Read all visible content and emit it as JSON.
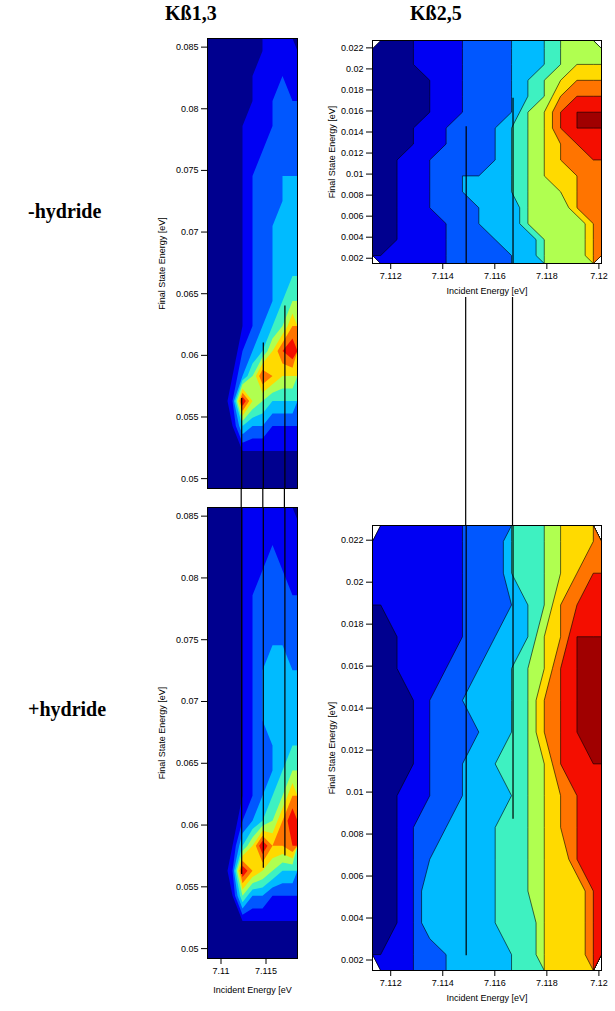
{
  "column_titles": [
    "Kß1,3",
    "Kß2,5"
  ],
  "row_titles": [
    "-hydride",
    "+hydride"
  ],
  "chart_data": [
    {
      "type": "contour",
      "ylabel": "Final State Energy [eV]",
      "tick_labels": "y",
      "xlim": [
        7.1085,
        7.1185
      ],
      "ylim": [
        0.0492,
        0.0857
      ],
      "yticks": [
        0.05,
        0.055,
        0.06,
        0.065,
        0.07,
        0.075,
        0.08,
        0.085
      ],
      "levels": [
        1,
        2,
        3,
        4,
        5,
        6,
        7,
        8,
        9,
        10
      ],
      "cells": [
        [
          1,
          1,
          1,
          1,
          1,
          2,
          2,
          2,
          2
        ],
        [
          1,
          1,
          1,
          1,
          2,
          2,
          2,
          3,
          2
        ],
        [
          1,
          1,
          1,
          1,
          2,
          2,
          3,
          3,
          3
        ],
        [
          1,
          1,
          1,
          2,
          2,
          2,
          3,
          3,
          3
        ],
        [
          1,
          1,
          1,
          2,
          2,
          3,
          3,
          3,
          3
        ],
        [
          1,
          1,
          1,
          2,
          3,
          3,
          3,
          4,
          4
        ],
        [
          1,
          1,
          1,
          2,
          3,
          3,
          3,
          4,
          4
        ],
        [
          1,
          1,
          1,
          2,
          3,
          3,
          4,
          4,
          4
        ],
        [
          1,
          1,
          1,
          2,
          3,
          3,
          4,
          4,
          4
        ],
        [
          1,
          1,
          1,
          2,
          3,
          3,
          4,
          4,
          5
        ],
        [
          1,
          1,
          1,
          2,
          3,
          3,
          4,
          5,
          6
        ],
        [
          1,
          1,
          1,
          2,
          3,
          4,
          5,
          6,
          8
        ],
        [
          1,
          1,
          1,
          3,
          4,
          5,
          7,
          9,
          10
        ],
        [
          1,
          1,
          2,
          4,
          6,
          9,
          8,
          7,
          7
        ],
        [
          1,
          1,
          3,
          10,
          7,
          6,
          5,
          5,
          5
        ],
        [
          1,
          1,
          2,
          5,
          4,
          4,
          3,
          3,
          3
        ],
        [
          1,
          1,
          1,
          2,
          2,
          2,
          2,
          2,
          2
        ],
        [
          1,
          1,
          1,
          1,
          1,
          1,
          1,
          1,
          1
        ]
      ],
      "lines": [
        {
          "x": 7.1123,
          "y1": 0.0492,
          "y2": 0.0565
        },
        {
          "x": 7.1147,
          "y1": 0.0492,
          "y2": 0.061
        },
        {
          "x": 7.1171,
          "y1": 0.0492,
          "y2": 0.064
        }
      ]
    },
    {
      "type": "contour",
      "xlabel": "Incident Energy [eV]",
      "ylabel": "Final State Energy [eV]",
      "xlim": [
        7.1113,
        7.1201
      ],
      "ylim": [
        0.0015,
        0.0227
      ],
      "xticks": [
        7.112,
        7.114,
        7.116,
        7.118,
        7.12
      ],
      "yticks": [
        0.002,
        0.004,
        0.006,
        0.008,
        0.01,
        0.012,
        0.014,
        0.016,
        0.018,
        0.02,
        0.022
      ],
      "levels": [
        1,
        2,
        3,
        4,
        5,
        6,
        7,
        8,
        9,
        10
      ],
      "cells": [
        [
          null,
          null,
          null,
          null,
          null,
          null,
          null,
          null,
          null,
          null,
          null,
          null,
          6,
          6
        ],
        [
          null,
          null,
          null,
          null,
          null,
          null,
          null,
          null,
          null,
          4,
          5,
          6,
          7,
          7
        ],
        [
          null,
          null,
          null,
          null,
          null,
          null,
          null,
          3,
          4,
          5,
          6,
          7,
          8,
          8
        ],
        [
          null,
          null,
          null,
          null,
          2,
          3,
          3,
          3,
          4,
          5,
          6,
          8,
          9,
          9
        ],
        [
          null,
          null,
          1,
          2,
          2,
          3,
          3,
          3,
          4,
          6,
          7,
          9,
          10,
          10
        ],
        [
          1,
          1,
          2,
          2,
          3,
          3,
          3,
          4,
          5,
          6,
          7,
          9,
          10,
          10
        ],
        [
          1,
          1,
          2,
          2,
          3,
          3,
          3,
          4,
          5,
          6,
          7,
          8,
          9,
          9
        ],
        [
          1,
          2,
          2,
          3,
          4,
          3,
          3,
          4,
          5,
          6,
          7,
          8,
          8,
          9
        ],
        [
          1,
          2,
          2,
          3,
          3,
          4,
          4,
          4,
          5,
          6,
          7,
          7,
          8,
          8
        ],
        [
          1,
          2,
          2,
          3,
          3,
          4,
          4,
          4,
          5,
          6,
          6,
          null,
          null,
          null
        ],
        [
          1,
          2,
          2,
          3,
          3,
          3,
          4,
          4,
          null,
          null,
          null,
          null,
          null,
          null
        ],
        [
          1,
          2,
          2,
          2,
          3,
          3,
          null,
          null,
          null,
          null,
          null,
          null,
          null,
          null
        ],
        [
          1,
          2,
          2,
          null,
          null,
          null,
          null,
          null,
          null,
          null,
          null,
          null,
          null,
          null
        ],
        [
          2,
          null,
          null,
          null,
          null,
          null,
          null,
          null,
          null,
          null,
          null,
          null,
          null,
          null
        ]
      ],
      "lines": [
        {
          "x": 7.1149,
          "y1": 0.0015,
          "y2": 0.0145
        },
        {
          "x": 7.1167,
          "y1": 0.0015,
          "y2": 0.0172
        }
      ]
    },
    {
      "type": "contour",
      "xlabel": "Incident Energy [eV",
      "ylabel": "Final State Energy [eV]",
      "xlim": [
        7.1085,
        7.1185
      ],
      "ylim": [
        0.0492,
        0.0857
      ],
      "xticks": [
        7.11,
        7.115
      ],
      "yticks": [
        0.05,
        0.055,
        0.06,
        0.065,
        0.07,
        0.075,
        0.08,
        0.085
      ],
      "levels": [
        1,
        2,
        3,
        4,
        5,
        6,
        7,
        8,
        9,
        10
      ],
      "cells": [
        [
          1,
          1,
          1,
          2,
          2,
          2,
          2,
          2,
          2
        ],
        [
          1,
          1,
          1,
          2,
          2,
          2,
          3,
          2,
          2
        ],
        [
          1,
          1,
          1,
          2,
          2,
          3,
          3,
          3,
          2
        ],
        [
          1,
          1,
          1,
          2,
          3,
          3,
          3,
          3,
          3
        ],
        [
          1,
          1,
          1,
          2,
          3,
          3,
          3,
          3,
          3
        ],
        [
          1,
          1,
          1,
          2,
          3,
          3,
          4,
          4,
          3
        ],
        [
          1,
          1,
          1,
          2,
          3,
          4,
          4,
          4,
          4
        ],
        [
          1,
          1,
          1,
          2,
          3,
          4,
          4,
          4,
          4
        ],
        [
          1,
          1,
          1,
          2,
          3,
          4,
          4,
          4,
          4
        ],
        [
          1,
          1,
          1,
          2,
          3,
          3,
          4,
          4,
          5
        ],
        [
          1,
          1,
          1,
          2,
          3,
          3,
          4,
          5,
          6
        ],
        [
          1,
          1,
          1,
          2,
          3,
          4,
          5,
          6,
          8
        ],
        [
          1,
          1,
          1,
          3,
          4,
          5,
          6,
          8,
          10
        ],
        [
          1,
          1,
          2,
          5,
          7,
          10,
          8,
          8,
          9
        ],
        [
          1,
          1,
          3,
          10,
          8,
          7,
          6,
          5,
          5
        ],
        [
          1,
          1,
          2,
          6,
          4,
          4,
          3,
          3,
          3
        ],
        [
          1,
          1,
          1,
          2,
          2,
          2,
          2,
          2,
          2
        ],
        [
          1,
          1,
          1,
          1,
          1,
          1,
          1,
          1,
          1
        ]
      ],
      "lines": [
        {
          "x": 7.1123,
          "y1": 0.056,
          "y2": 0.0857
        },
        {
          "x": 7.1147,
          "y1": 0.0565,
          "y2": 0.0857
        },
        {
          "x": 7.1171,
          "y1": 0.0575,
          "y2": 0.0857
        }
      ]
    },
    {
      "type": "contour",
      "xlabel": "Incident Energy [eV]",
      "ylabel": "Final State Energy [eV]",
      "xlim": [
        7.1113,
        7.1201
      ],
      "ylim": [
        0.0015,
        0.0227
      ],
      "xticks": [
        7.112,
        7.114,
        7.116,
        7.118,
        7.12
      ],
      "yticks": [
        0.002,
        0.004,
        0.006,
        0.008,
        0.01,
        0.012,
        0.014,
        0.016,
        0.018,
        0.02,
        0.022
      ],
      "levels": [
        1,
        2,
        3,
        4,
        5,
        6,
        7,
        8,
        9,
        10
      ],
      "cells": [
        [
          null,
          null,
          null,
          null,
          null,
          null,
          null,
          null,
          null,
          null,
          null,
          null,
          7,
          8
        ],
        [
          null,
          null,
          null,
          null,
          null,
          null,
          null,
          null,
          null,
          5,
          6,
          7,
          8,
          9
        ],
        [
          null,
          null,
          null,
          null,
          null,
          null,
          null,
          3,
          4,
          5,
          6,
          8,
          9,
          9
        ],
        [
          null,
          null,
          null,
          null,
          2,
          3,
          3,
          4,
          4,
          5,
          7,
          8,
          10,
          10
        ],
        [
          null,
          null,
          2,
          2,
          3,
          3,
          4,
          4,
          5,
          6,
          7,
          9,
          10,
          10
        ],
        [
          1,
          1,
          2,
          3,
          3,
          4,
          4,
          4,
          5,
          6,
          8,
          9,
          10,
          10
        ],
        [
          1,
          1,
          2,
          3,
          4,
          3,
          4,
          4,
          5,
          6,
          8,
          9,
          10,
          10
        ],
        [
          1,
          1,
          2,
          3,
          3,
          4,
          4,
          5,
          5,
          6,
          7,
          9,
          9,
          10
        ],
        [
          1,
          2,
          2,
          3,
          3,
          4,
          4,
          4,
          5,
          6,
          7,
          8,
          9,
          9
        ],
        [
          1,
          2,
          3,
          3,
          4,
          4,
          4,
          5,
          5,
          6,
          7,
          null,
          null,
          null
        ],
        [
          1,
          2,
          3,
          4,
          4,
          4,
          4,
          5,
          null,
          null,
          null,
          null,
          null,
          null
        ],
        [
          1,
          2,
          3,
          5,
          4,
          4,
          null,
          null,
          null,
          null,
          null,
          null,
          null,
          null
        ],
        [
          1,
          2,
          3,
          null,
          null,
          null,
          null,
          null,
          null,
          null,
          null,
          null,
          null,
          null
        ],
        [
          2,
          null,
          null,
          null,
          null,
          null,
          null,
          null,
          null,
          null,
          null,
          null,
          null,
          null
        ]
      ],
      "lines": [
        {
          "x": 7.1149,
          "y1": 0.0022,
          "y2": 0.0227
        },
        {
          "x": 7.1167,
          "y1": 0.0087,
          "y2": 0.0227
        }
      ]
    }
  ]
}
